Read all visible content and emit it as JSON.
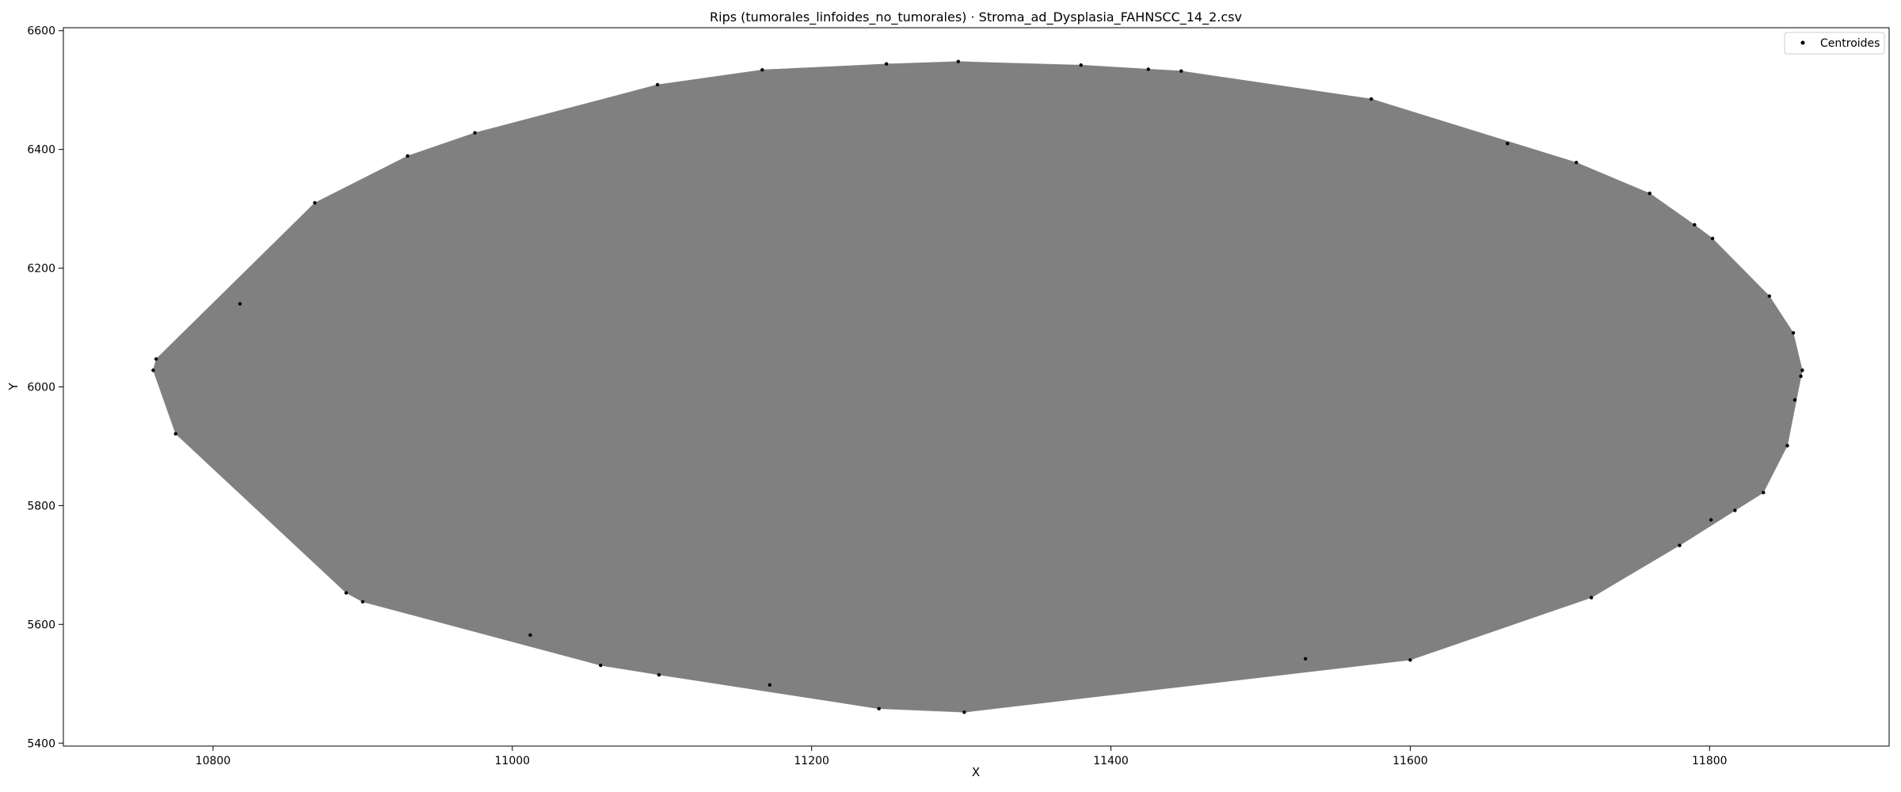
{
  "chart_data": {
    "type": "scatter",
    "title": "Rips (tumorales_linfoides_no_tumorales) · Stroma_ad_Dysplasia_FAHNSCC_14_2.csv",
    "xlabel": "X",
    "ylabel": "Y",
    "xlim": [
      10700,
      11920
    ],
    "ylim": [
      5395,
      6605
    ],
    "xticks": [
      10800,
      11000,
      11200,
      11400,
      11600,
      11800
    ],
    "yticks": [
      5400,
      5600,
      5800,
      6000,
      6200,
      6400,
      6600
    ],
    "grid": false,
    "legend": {
      "position": "top-right",
      "entries": [
        "Centroides"
      ]
    },
    "series": [
      {
        "name": "Centroides",
        "points": [
          [
            10762,
            6047
          ],
          [
            10760,
            6028
          ],
          [
            10775,
            5921
          ],
          [
            10818,
            6140
          ],
          [
            10868,
            6310
          ],
          [
            10930,
            6389
          ],
          [
            10975,
            6428
          ],
          [
            11097,
            6509
          ],
          [
            11167,
            6534
          ],
          [
            11250,
            6544
          ],
          [
            11298,
            6548
          ],
          [
            11380,
            6542
          ],
          [
            11425,
            6535
          ],
          [
            11447,
            6532
          ],
          [
            11574,
            6485
          ],
          [
            11665,
            6410
          ],
          [
            11711,
            6378
          ],
          [
            11760,
            6326
          ],
          [
            11790,
            6273
          ],
          [
            11802,
            6250
          ],
          [
            11840,
            6153
          ],
          [
            11856,
            6091
          ],
          [
            11862,
            6028
          ],
          [
            11861,
            6018
          ],
          [
            11857,
            5978
          ],
          [
            11852,
            5901
          ],
          [
            11836,
            5822
          ],
          [
            11817,
            5792
          ],
          [
            11801,
            5776
          ],
          [
            11780,
            5733
          ],
          [
            11721,
            5645
          ],
          [
            11600,
            5540
          ],
          [
            11530,
            5542
          ],
          [
            11302,
            5452
          ],
          [
            11245,
            5458
          ],
          [
            11172,
            5498
          ],
          [
            11098,
            5515
          ],
          [
            11059,
            5531
          ],
          [
            11012,
            5582
          ],
          [
            10900,
            5638
          ],
          [
            10889,
            5653
          ]
        ]
      }
    ],
    "edges_color": "#808080",
    "point_color": "#000000"
  }
}
